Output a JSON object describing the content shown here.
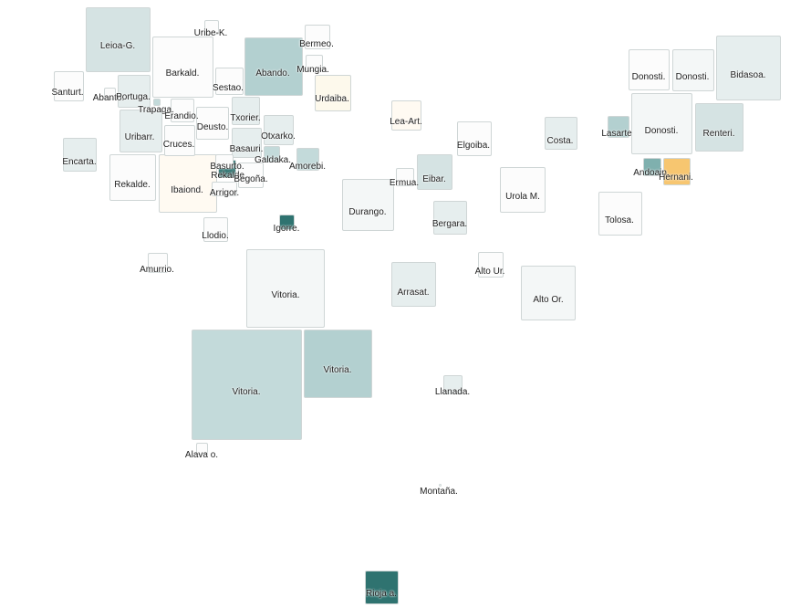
{
  "colors": {
    "white": "#fcfcfc",
    "very_light": "#f4f7f7",
    "light": "#e6eeee",
    "mid_light": "#d5e3e3",
    "mid": "#c3dada",
    "mid_dark": "#b3d0d0",
    "teal": "#7fb0ae",
    "dark_teal": "#2f7370",
    "cream": "#fdf9ec",
    "peach": "#fffaf2",
    "orange": "#f7c670"
  },
  "regions": [
    {
      "label": "Leioa-G.",
      "fill": "mid_light"
    },
    {
      "label": "Uribe-K.",
      "fill": "white"
    },
    {
      "label": "Barkald.",
      "fill": "white"
    },
    {
      "label": "Abando.",
      "fill": "mid_dark"
    },
    {
      "label": "Bermeo.",
      "fill": "white"
    },
    {
      "label": "Mungia.",
      "fill": "white"
    },
    {
      "label": "Sestao.",
      "fill": "white"
    },
    {
      "label": "Santurt.",
      "fill": "white"
    },
    {
      "label": "Abanto.",
      "fill": "white"
    },
    {
      "label": "Portuga.",
      "fill": "light"
    },
    {
      "label": "Trapaga.",
      "fill": "mid"
    },
    {
      "label": "Erandio.",
      "fill": "white"
    },
    {
      "label": "Urdaiba.",
      "fill": "cream"
    },
    {
      "label": "Txorier.",
      "fill": "light"
    },
    {
      "label": "Deusto.",
      "fill": "white"
    },
    {
      "label": "Uribarr.",
      "fill": "light"
    },
    {
      "label": "Cruces.",
      "fill": "white"
    },
    {
      "label": "Otxarko.",
      "fill": "light"
    },
    {
      "label": "Basauri.",
      "fill": "light"
    },
    {
      "label": "Galdaka.",
      "fill": "mid"
    },
    {
      "label": "Amorebi.",
      "fill": "mid"
    },
    {
      "label": "Encarta.",
      "fill": "light"
    },
    {
      "label": "Rekalde.",
      "fill": "white"
    },
    {
      "label": "Ibaiond.",
      "fill": "peach"
    },
    {
      "label": "Rekalde.",
      "fill": "white"
    },
    {
      "label": "Basurto.",
      "fill": "dark_teal"
    },
    {
      "label": "Begoña.",
      "fill": "white"
    },
    {
      "label": "Arrigor.",
      "fill": "white"
    },
    {
      "label": "Llodio.",
      "fill": "white"
    },
    {
      "label": "Igorre.",
      "fill": "dark_teal"
    },
    {
      "label": "Amurrio.",
      "fill": "white"
    },
    {
      "label": "Vitoria.",
      "fill": "very_light"
    },
    {
      "label": "Vitoria.",
      "fill": "mid"
    },
    {
      "label": "Vitoria.",
      "fill": "mid_dark"
    },
    {
      "label": "Alava o.",
      "fill": "white"
    },
    {
      "label": "Lea-Art.",
      "fill": "peach"
    },
    {
      "label": "Elgoiba.",
      "fill": "white"
    },
    {
      "label": "Ermua.",
      "fill": "white"
    },
    {
      "label": "Eibar.",
      "fill": "mid_light"
    },
    {
      "label": "Durango.",
      "fill": "very_light"
    },
    {
      "label": "Bergara.",
      "fill": "light"
    },
    {
      "label": "Urola M.",
      "fill": "white"
    },
    {
      "label": "Costa.",
      "fill": "light"
    },
    {
      "label": "Arrasat.",
      "fill": "light"
    },
    {
      "label": "Alto Ur.",
      "fill": "white"
    },
    {
      "label": "Alto Or.",
      "fill": "very_light"
    },
    {
      "label": "Llanada.",
      "fill": "light"
    },
    {
      "label": "Montaña.",
      "fill": "white"
    },
    {
      "label": "Rioja a.",
      "fill": "dark_teal"
    },
    {
      "label": "Donosti.",
      "fill": "white"
    },
    {
      "label": "Donosti.",
      "fill": "very_light"
    },
    {
      "label": "Bidasoa.",
      "fill": "light"
    },
    {
      "label": "Lasarte",
      "fill": "mid_dark"
    },
    {
      "label": "Donosti.",
      "fill": "very_light"
    },
    {
      "label": "Renteri.",
      "fill": "mid_light"
    },
    {
      "label": "Tolosa.",
      "fill": "white"
    },
    {
      "label": "Andoain.",
      "fill": "teal"
    },
    {
      "label": "Hernani.",
      "fill": "orange"
    }
  ]
}
